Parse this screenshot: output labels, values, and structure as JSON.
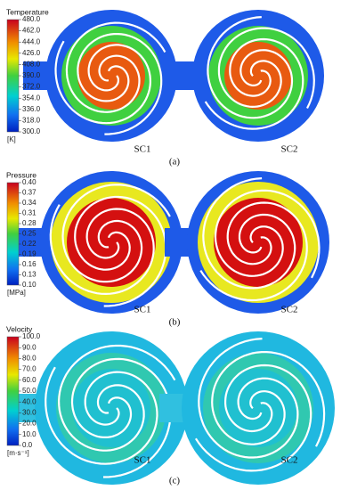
{
  "panels": [
    {
      "colorbar": {
        "title": "Temperature",
        "ticks": [
          "480.0",
          "462.0",
          "444.0",
          "426.0",
          "408.0",
          "390.0",
          "372.0",
          "354.0",
          "336.0",
          "318.0",
          "300.0"
        ],
        "unit": "[K]"
      },
      "labels": [
        "SC1",
        "SC2"
      ],
      "caption": "(a)"
    },
    {
      "colorbar": {
        "title": "Pressure",
        "ticks": [
          "0.40",
          "0.37",
          "0.34",
          "0.31",
          "0.28",
          "0.25",
          "0.22",
          "0.19",
          "0.16",
          "0.13",
          "0.10"
        ],
        "unit": "[MPa]"
      },
      "labels": [
        "SC1",
        "SC2"
      ],
      "caption": "(b)"
    },
    {
      "colorbar": {
        "title": "Velocity",
        "ticks": [
          "100.0",
          "90.0",
          "80.0",
          "70.0",
          "60.0",
          "50.0",
          "40.0",
          "30.0",
          "20.0",
          "10.0",
          "0.0"
        ],
        "unit": "[m·s⁻¹]"
      },
      "labels": [
        "SC1",
        "SC2"
      ],
      "caption": "(c)"
    }
  ]
}
